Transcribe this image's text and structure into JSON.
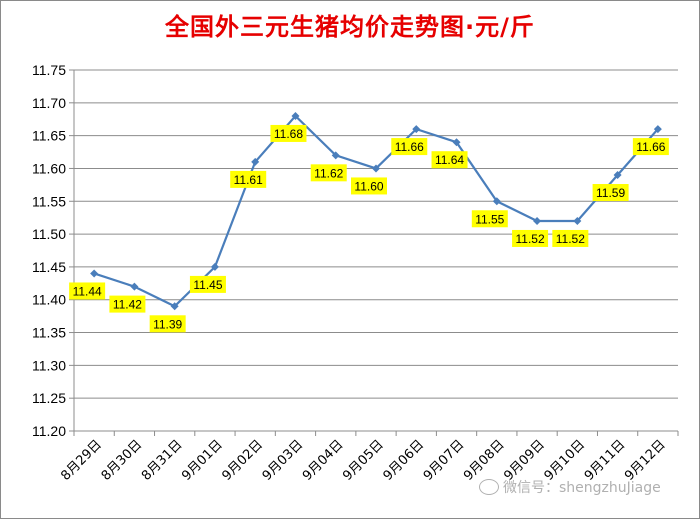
{
  "chart_data": {
    "type": "line",
    "title": "全国外三元生猪均价走势图·元/斤",
    "categories": [
      "8月29日",
      "8月30日",
      "8月31日",
      "9月01日",
      "9月02日",
      "9月03日",
      "9月04日",
      "9月05日",
      "9月06日",
      "9月07日",
      "9月08日",
      "9月09日",
      "9月10日",
      "9月11日",
      "9月12日"
    ],
    "values": [
      11.44,
      11.42,
      11.39,
      11.45,
      11.61,
      11.68,
      11.62,
      11.6,
      11.66,
      11.64,
      11.55,
      11.52,
      11.52,
      11.59,
      11.66
    ],
    "data_labels": [
      "11.44",
      "11.42",
      "11.39",
      "11.45",
      "11.61",
      "11.68",
      "11.62",
      "11.60",
      "11.66",
      "11.64",
      "11.55",
      "11.52",
      "11.52",
      "11.59",
      "11.66"
    ],
    "ylim": [
      11.2,
      11.75
    ],
    "yticks": [
      "11.20",
      "11.25",
      "11.30",
      "11.35",
      "11.40",
      "11.45",
      "11.50",
      "11.55",
      "11.60",
      "11.65",
      "11.70",
      "11.75"
    ],
    "xlabel": "",
    "ylabel": "",
    "grid": "horizontal",
    "legend": "none",
    "line_color": "#4a7ebb",
    "label_box_color": "#ffff00"
  },
  "watermark": {
    "text": "微信号：shengzhuJiage",
    "icon": "wechat-icon"
  }
}
